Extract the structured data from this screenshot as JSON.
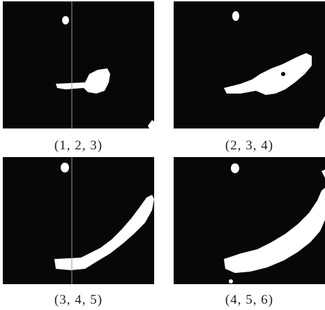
{
  "panels": [
    {
      "label": "(1, 2, 3)"
    },
    {
      "label": "(2, 3, 4)"
    },
    {
      "label": "(3, 4, 5)"
    },
    {
      "label": "(4, 5, 6)"
    }
  ],
  "colors": {
    "frame_background": "#070707",
    "blob": "#ffffff",
    "page_background": "#ffffff",
    "caption_text": "#222222"
  }
}
